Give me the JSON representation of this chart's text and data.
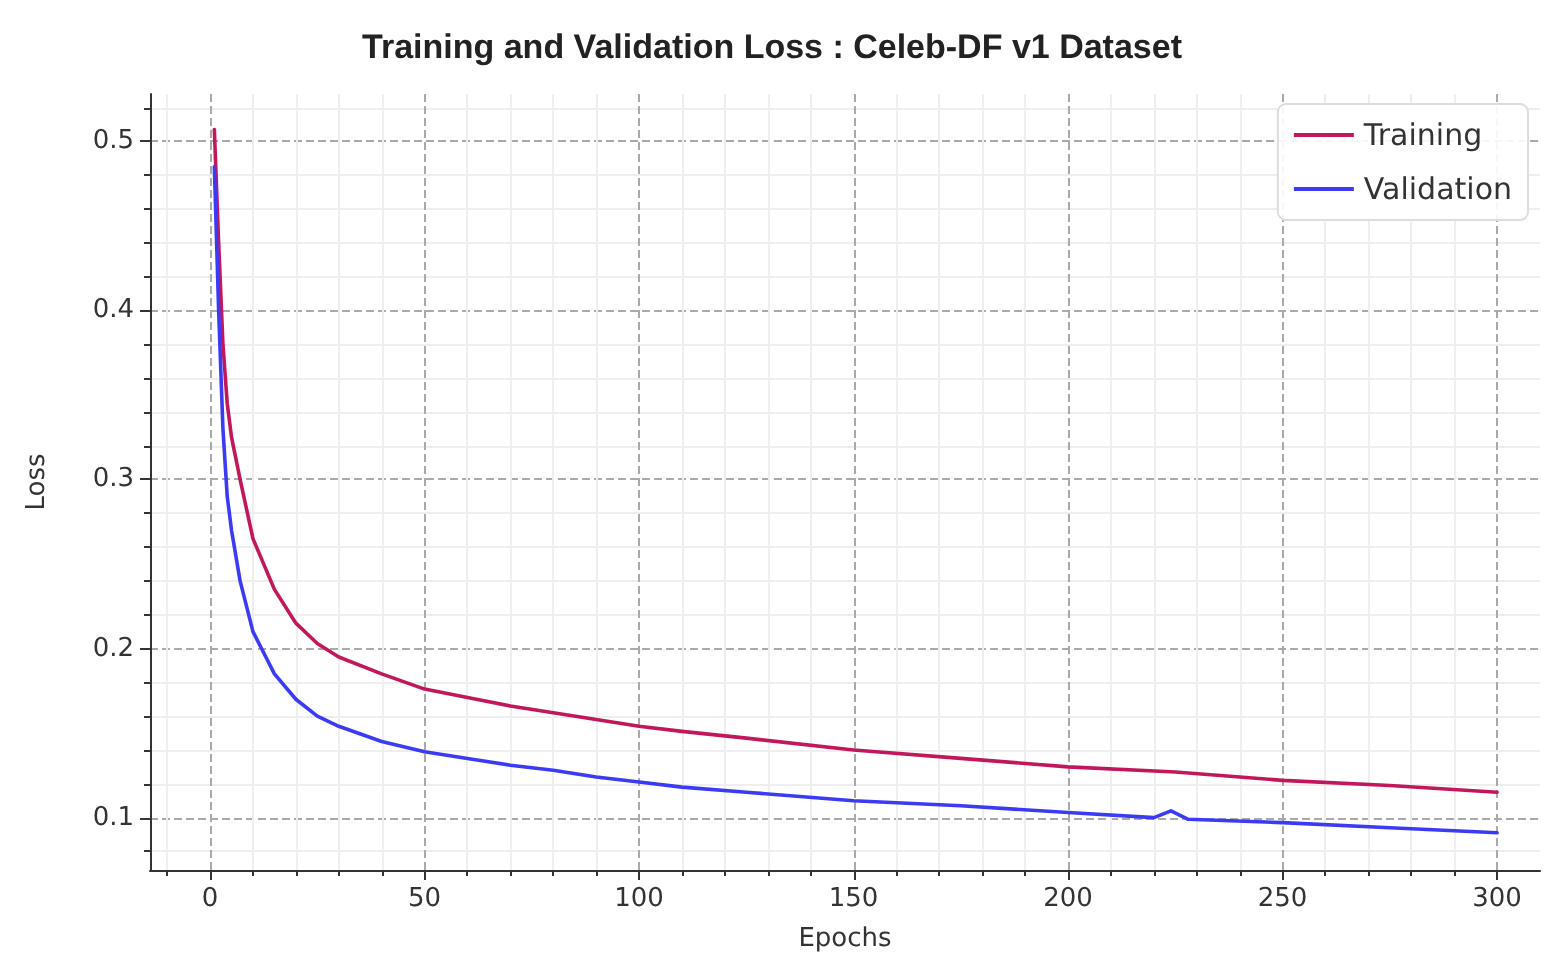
{
  "chart_data": {
    "type": "line",
    "title": "Training and Validation Loss : Celeb-DF v1 Dataset",
    "xlabel": "Epochs",
    "ylabel": "Loss",
    "xlim": [
      -14,
      310
    ],
    "ylim": [
      0.069,
      0.528
    ],
    "xticks": [
      0,
      50,
      100,
      150,
      200,
      250,
      300
    ],
    "yticks": [
      0.1,
      0.2,
      0.3,
      0.4,
      0.5
    ],
    "grid": true,
    "legend": "top right",
    "marker": "none",
    "line_style": "solid",
    "series": [
      {
        "name": "Training",
        "color": "#c2185b",
        "x": [
          1,
          2,
          3,
          4,
          5,
          7,
          10,
          15,
          20,
          25,
          30,
          40,
          50,
          60,
          70,
          80,
          90,
          100,
          110,
          125,
          150,
          175,
          200,
          225,
          250,
          275,
          300
        ],
        "values": [
          0.507,
          0.44,
          0.38,
          0.345,
          0.325,
          0.3,
          0.265,
          0.235,
          0.215,
          0.203,
          0.195,
          0.185,
          0.176,
          0.171,
          0.166,
          0.162,
          0.158,
          0.154,
          0.151,
          0.147,
          0.14,
          0.135,
          0.13,
          0.127,
          0.122,
          0.119,
          0.115
        ]
      },
      {
        "name": "Validation",
        "color": "#3b3bf5",
        "x": [
          1,
          2,
          3,
          4,
          5,
          7,
          10,
          12,
          15,
          20,
          25,
          30,
          40,
          50,
          60,
          70,
          80,
          90,
          100,
          110,
          125,
          150,
          175,
          200,
          220,
          224,
          228,
          250,
          275,
          300
        ],
        "values": [
          0.485,
          0.4,
          0.33,
          0.29,
          0.27,
          0.24,
          0.21,
          0.2,
          0.185,
          0.17,
          0.16,
          0.154,
          0.145,
          0.139,
          0.135,
          0.131,
          0.128,
          0.124,
          0.121,
          0.118,
          0.115,
          0.11,
          0.107,
          0.103,
          0.1,
          0.104,
          0.099,
          0.097,
          0.094,
          0.091
        ]
      }
    ]
  }
}
